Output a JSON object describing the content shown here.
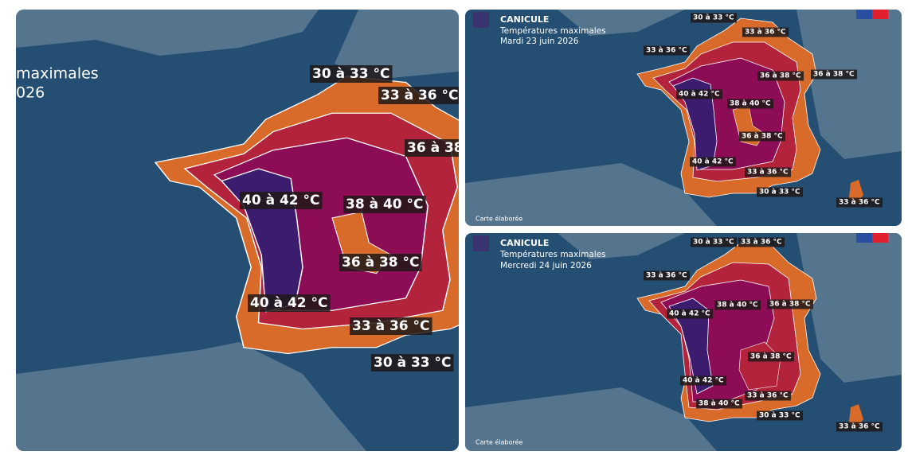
{
  "panels": [
    {
      "title_lines": [
        "maximales",
        "026"
      ],
      "labels": [
        "30 à 33 °C",
        "33 à 36 °C",
        "36 à 38",
        "40 à 42 °C",
        "38 à 40 °C",
        "36 à 38 °C",
        "40 à 42 °C",
        "33 à 36 °C",
        "30 à 33 °C"
      ]
    },
    {
      "title": "CANICULE",
      "subtitle": "Températures maximales",
      "date": "Mardi 23 juin 2026",
      "labels": [
        "30 à 33 °C",
        "33 à 36 °C",
        "33 à 36 °C",
        "36 à 38 °C",
        "36 à 38 °C",
        "40 à 42 °C",
        "38 à 40 °C",
        "36 à 38 °C",
        "40 à 42 °C",
        "33 à 36 °C",
        "30 à 33 °C",
        "33 à 36 °C"
      ],
      "footer": "Carte élaborée"
    },
    {
      "title": "CANICULE",
      "subtitle": "Températures maximales",
      "date": "Mercredi 24 juin 2026",
      "labels": [
        "30 à 33 °C",
        "33 à 36 °C",
        "33 à 36 °C",
        "38 à 40 °C",
        "36 à 38 °C",
        "40 à 42 °C",
        "36 à 38 °C",
        "40 à 42 °C",
        "38 à 40 °C",
        "33 à 36 °C",
        "30 à 33 °C",
        "33 à 36 °C"
      ],
      "footer": "Carte élaborée"
    }
  ]
}
